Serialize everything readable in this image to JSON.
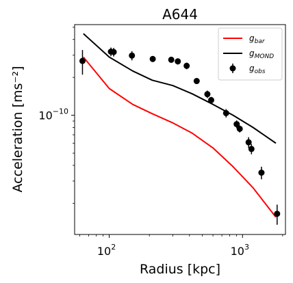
{
  "chart_data": {
    "type": "scatter",
    "title": "A644",
    "xlabel": "Radius [kpc]",
    "ylabel": "Acceleration [ms⁻²]",
    "xscale": "log",
    "yscale": "log",
    "xlim": [
      55,
      2100
    ],
    "ylim": [
      1.13e-11,
      5.25e-10
    ],
    "x_ticks": [
      {
        "value": 100,
        "base": "10",
        "exp": "2"
      },
      {
        "value": 1000,
        "base": "10",
        "exp": "3"
      }
    ],
    "y_ticks": [
      {
        "value": 1e-10,
        "base": "10",
        "exp": "−10"
      }
    ],
    "grid": false,
    "legend_position": "top-right",
    "series": [
      {
        "name": "g",
        "name_sub": "bar",
        "kind": "line",
        "color": "#ff0000",
        "x": [
          64,
          100,
          150,
          210,
          300,
          420,
          600,
          850,
          1200,
          1780
        ],
        "y": [
          2.9e-10,
          1.63e-10,
          1.22e-10,
          1.03e-10,
          8.7e-11,
          7.2e-11,
          5.5e-11,
          3.9e-11,
          2.65e-11,
          1.55e-11
        ]
      },
      {
        "name": "g",
        "name_sub": "MOND",
        "kind": "line",
        "color": "#000000",
        "x": [
          64,
          100,
          150,
          210,
          300,
          420,
          600,
          850,
          1200,
          1780
        ],
        "y": [
          4.45e-10,
          2.9e-10,
          2.25e-10,
          1.9e-10,
          1.72e-10,
          1.48e-10,
          1.22e-10,
          1e-10,
          8e-11,
          6e-11
        ]
      },
      {
        "name": "g",
        "name_sub": "obs",
        "kind": "errorbar",
        "color": "#000000",
        "x": [
          63,
          103,
          108,
          148,
          212,
          292,
          327,
          381,
          453,
          545,
          582,
          753,
          904,
          953,
          1111,
          1167,
          1387,
          1818
        ],
        "y": [
          2.7e-10,
          3.2e-10,
          3.18e-10,
          2.98e-10,
          2.8e-10,
          2.76e-10,
          2.68e-10,
          2.47e-10,
          1.87e-10,
          1.47e-10,
          1.32e-10,
          1.04e-10,
          8.5e-11,
          7.8e-11,
          6.1e-11,
          5.4e-11,
          3.5e-11,
          1.65e-11
        ],
        "err": [
          6e-11,
          2.5e-11,
          2.5e-11,
          2.5e-11,
          1.5e-11,
          1.5e-11,
          1.5e-11,
          1.5e-11,
          1e-11,
          1e-11,
          8e-12,
          8e-12,
          6e-12,
          5e-12,
          6e-12,
          5e-12,
          4e-12,
          3e-12
        ]
      }
    ]
  }
}
